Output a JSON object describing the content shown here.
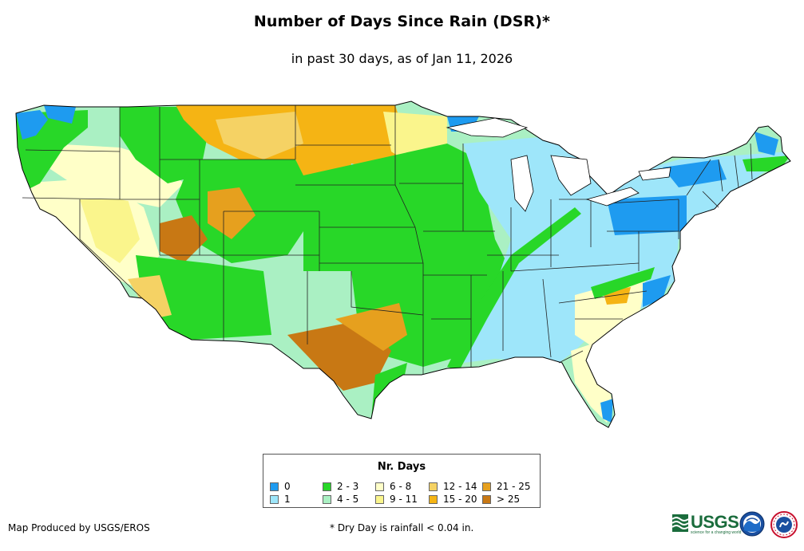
{
  "title": "Number of Days Since Rain (DSR)*",
  "subtitle": "in past 30 days, as of Jan 11, 2026",
  "legend": {
    "title": "Nr. Days",
    "items": [
      {
        "label": "0",
        "color": "#1E9BF0"
      },
      {
        "label": "1",
        "color": "#9EE6FA"
      },
      {
        "label": "2 - 3",
        "color": "#28D728"
      },
      {
        "label": "4 - 5",
        "color": "#AAF0C3"
      },
      {
        "label": "6 - 8",
        "color": "#FFFFC8"
      },
      {
        "label": "9 - 11",
        "color": "#FAF58C"
      },
      {
        "label": "12 - 14",
        "color": "#F5D264"
      },
      {
        "label": "15 - 20",
        "color": "#F5B414"
      },
      {
        "label": "21 - 25",
        "color": "#E6A01E"
      },
      {
        "label": "> 25",
        "color": "#C87814"
      }
    ]
  },
  "credit": "Map Produced by USGS/EROS",
  "footnote": "* Dry Day is rainfall < 0.04 in.",
  "logos": {
    "usgs_text": "USGS",
    "usgs_tagline": "science for a changing world"
  }
}
